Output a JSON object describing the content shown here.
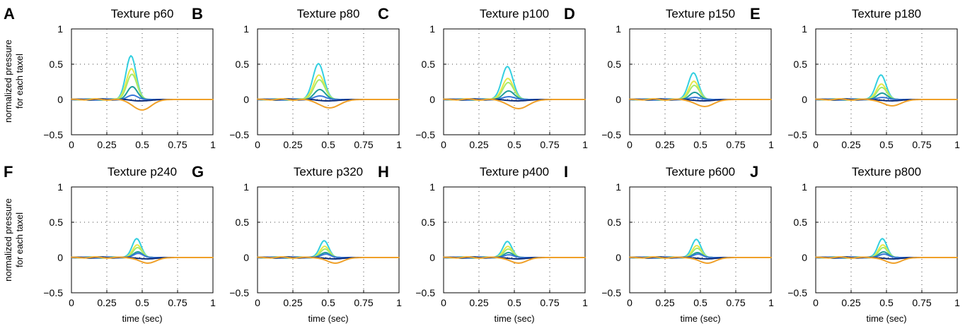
{
  "figure": {
    "ylabel_line1": "normalized pressure",
    "ylabel_line2": "for each taxel",
    "xlabel": "time (sec)"
  },
  "chart_data": {
    "type": "line",
    "xlim": [
      0,
      1
    ],
    "ylim": [
      -0.5,
      1
    ],
    "xticks": [
      "0",
      "0.25",
      "0.5",
      "0.75",
      "1"
    ],
    "yticks": [
      "1",
      "0.5",
      "0",
      "−0.5"
    ],
    "grid": true,
    "series_colors": [
      "#33cfe0",
      "#e6e84a",
      "#a8ea6a",
      "#1f9c9c",
      "#3a78d8",
      "#0a2a7a",
      "#f0a028"
    ],
    "panels": [
      {
        "letter": "A",
        "title": "Texture p60",
        "center": 0.43,
        "width": 0.05,
        "peaks": [
          0.62,
          0.44,
          0.36,
          0.18,
          0.06,
          -0.02,
          -0.15
        ]
      },
      {
        "letter": "B",
        "title": "Texture p80",
        "center": 0.44,
        "width": 0.055,
        "peaks": [
          0.51,
          0.35,
          0.28,
          0.14,
          0.05,
          -0.02,
          -0.12
        ]
      },
      {
        "letter": "C",
        "title": "Texture p100",
        "center": 0.46,
        "width": 0.055,
        "peaks": [
          0.47,
          0.3,
          0.24,
          0.12,
          0.04,
          -0.02,
          -0.13
        ]
      },
      {
        "letter": "D",
        "title": "Texture p150",
        "center": 0.46,
        "width": 0.05,
        "peaks": [
          0.38,
          0.26,
          0.2,
          0.1,
          0.03,
          -0.02,
          -0.1
        ]
      },
      {
        "letter": "E",
        "title": "Texture p180",
        "center": 0.47,
        "width": 0.05,
        "peaks": [
          0.35,
          0.22,
          0.17,
          0.09,
          0.03,
          -0.02,
          -0.09
        ]
      },
      {
        "letter": "F",
        "title": "Texture p240",
        "center": 0.47,
        "width": 0.045,
        "peaks": [
          0.27,
          0.18,
          0.14,
          0.08,
          0.06,
          -0.02,
          -0.08
        ]
      },
      {
        "letter": "G",
        "title": "Texture p320",
        "center": 0.48,
        "width": 0.045,
        "peaks": [
          0.24,
          0.16,
          0.12,
          0.07,
          0.05,
          -0.02,
          -0.08
        ]
      },
      {
        "letter": "H",
        "title": "Texture p400",
        "center": 0.46,
        "width": 0.045,
        "peaks": [
          0.23,
          0.16,
          0.12,
          0.07,
          0.04,
          -0.02,
          -0.08
        ]
      },
      {
        "letter": "I",
        "title": "Texture p600",
        "center": 0.48,
        "width": 0.045,
        "peaks": [
          0.26,
          0.17,
          0.13,
          0.07,
          0.05,
          -0.02,
          -0.08
        ]
      },
      {
        "letter": "J",
        "title": "Texture p800",
        "center": 0.48,
        "width": 0.045,
        "peaks": [
          0.27,
          0.18,
          0.14,
          0.08,
          0.05,
          -0.02,
          -0.08
        ]
      }
    ]
  }
}
